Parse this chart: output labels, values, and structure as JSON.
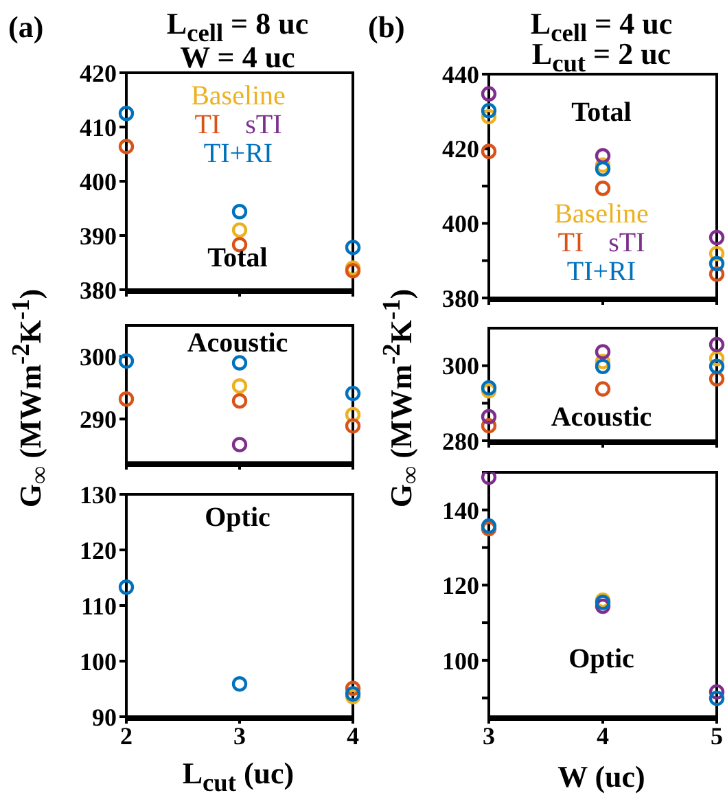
{
  "chart_data": [
    {
      "type": "scatter",
      "title": "L$_{cell}$ = 8 uc",
      "subtitle": "W = 4 uc",
      "annotations": [
        "(a)",
        "Total"
      ],
      "x": [
        2,
        3,
        4
      ],
      "xlim": [
        2,
        4
      ],
      "xticks": [
        2,
        3,
        4
      ],
      "ylim": [
        380,
        420
      ],
      "yticks": [
        380,
        390,
        400,
        410,
        420
      ],
      "tick_labels": "y",
      "marker": "circle",
      "legend": "top",
      "series": [
        {
          "name": "Baseline",
          "color": "#edb120",
          "values": [
            null,
            391.0,
            384.0
          ]
        },
        {
          "name": "TI",
          "color": "#d95319",
          "values": [
            406.4,
            388.3,
            383.5
          ]
        },
        {
          "name": "sTI",
          "color": "#7e2f8e",
          "values": [
            null,
            null,
            null
          ]
        },
        {
          "name": "TI+RI",
          "color": "#0072bd",
          "values": [
            412.5,
            394.4,
            387.8
          ]
        }
      ]
    },
    {
      "type": "scatter",
      "ylabel": "G$_{∞}$ (MWm$^{-2}$K$^{-1}$)",
      "annotations": [
        "Acoustic"
      ],
      "x": [
        2,
        3,
        4
      ],
      "xlim": [
        2,
        4
      ],
      "xticks": [
        2,
        3,
        4
      ],
      "ylim": [
        283,
        305
      ],
      "yticks": [
        290,
        300
      ],
      "tick_labels": "y",
      "marker": "circle",
      "series": [
        {
          "color": "#edb120",
          "values": [
            null,
            295.3,
            290.7
          ]
        },
        {
          "color": "#d95319",
          "values": [
            293.2,
            292.9,
            288.9
          ]
        },
        {
          "color": "#7e2f8e",
          "values": [
            null,
            285.9,
            null
          ]
        },
        {
          "color": "#0072bd",
          "values": [
            299.3,
            299.0,
            294.1
          ]
        }
      ]
    },
    {
      "type": "scatter",
      "xlabel": "L$_{cut}$ (uc)",
      "annotations": [
        "Optic"
      ],
      "x": [
        2,
        3,
        4
      ],
      "xlim": [
        2,
        4
      ],
      "xticks": [
        2,
        3,
        4
      ],
      "ylim": [
        90,
        130
      ],
      "yticks": [
        90,
        100,
        110,
        120,
        130
      ],
      "marker": "circle",
      "series": [
        {
          "color": "#edb120",
          "values": [
            null,
            null,
            93.6
          ]
        },
        {
          "color": "#d95319",
          "values": [
            null,
            null,
            95.1
          ]
        },
        {
          "color": "#7e2f8e",
          "values": [
            null,
            null,
            null
          ]
        },
        {
          "color": "#0072bd",
          "values": [
            113.3,
            95.9,
            94.1
          ]
        }
      ]
    },
    {
      "type": "scatter",
      "title": "L$_{cell}$ = 4 uc",
      "subtitle": "L$_{cut}$ = 2 uc",
      "annotations": [
        "(b)",
        "Total"
      ],
      "x": [
        3,
        4,
        5
      ],
      "xlim": [
        3,
        5
      ],
      "xticks": [
        3,
        4,
        5
      ],
      "ylim": [
        380,
        440
      ],
      "yticks": [
        380,
        {
          "value": 390,
          "label": null
        },
        400,
        {
          "value": 410,
          "label": null
        },
        420,
        {
          "value": 430,
          "label": null
        },
        440
      ],
      "tick_labels": "y",
      "marker": "circle",
      "legend": "bottom",
      "series": [
        {
          "name": "Baseline",
          "color": "#edb120",
          "values": [
            428.6,
            415.6,
            391.9
          ]
        },
        {
          "name": "TI",
          "color": "#d95319",
          "values": [
            419.3,
            409.4,
            386.4
          ]
        },
        {
          "name": "sTI",
          "color": "#7e2f8e",
          "values": [
            434.7,
            418.1,
            396.2
          ]
        },
        {
          "name": "TI+RI",
          "color": "#0072bd",
          "values": [
            430.2,
            414.6,
            389.2
          ]
        }
      ]
    },
    {
      "type": "scatter",
      "ylabel": "G$_{∞}$ (MWm$^{-2}$K$^{-1}$)",
      "annotations": [
        "Acoustic"
      ],
      "x": [
        3,
        4,
        5
      ],
      "xlim": [
        3,
        5
      ],
      "xticks": [
        3,
        4,
        5
      ],
      "ylim": [
        280,
        310
      ],
      "yticks": [
        280,
        {
          "value": 290,
          "label": null
        },
        300
      ],
      "tick_labels": "y",
      "marker": "circle",
      "series": [
        {
          "color": "#edb120",
          "values": [
            293.3,
            301.1,
            301.9
          ]
        },
        {
          "color": "#d95319",
          "values": [
            284.0,
            293.8,
            296.5
          ]
        },
        {
          "color": "#7e2f8e",
          "values": [
            286.4,
            303.7,
            305.6
          ]
        },
        {
          "color": "#0072bd",
          "values": [
            294.1,
            299.8,
            299.8
          ]
        }
      ]
    },
    {
      "type": "scatter",
      "xlabel": "W (uc)",
      "annotations": [
        "Optic"
      ],
      "x": [
        3,
        4,
        5
      ],
      "xlim": [
        3,
        5
      ],
      "xticks": [
        3,
        4,
        5
      ],
      "ylim": [
        85,
        150
      ],
      "yticks": [
        {
          "value": 90,
          "label": null
        },
        100,
        {
          "value": 110,
          "label": null
        },
        120,
        {
          "value": 130,
          "label": null
        },
        140,
        {
          "value": 150,
          "label": null
        }
      ],
      "marker": "circle",
      "series": [
        {
          "color": "#edb120",
          "values": [
            null,
            116.0,
            null
          ]
        },
        {
          "color": "#d95319",
          "values": [
            135.0,
            null,
            null
          ]
        },
        {
          "color": "#7e2f8e",
          "values": [
            148.7,
            114.4,
            91.6
          ]
        },
        {
          "color": "#0072bd",
          "values": [
            135.7,
            115.4,
            89.9
          ]
        }
      ]
    }
  ]
}
